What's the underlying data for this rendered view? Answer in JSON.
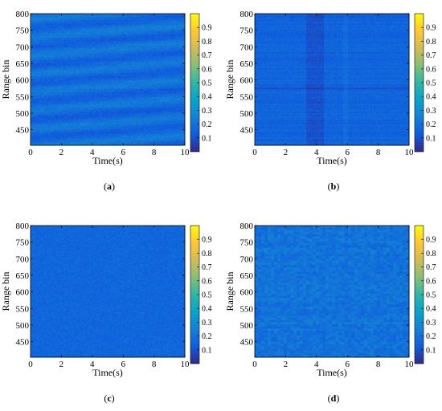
{
  "colors": {
    "colormap_parula": [
      "#352a87",
      "#0f5cdd",
      "#1481d6",
      "#06a4ca",
      "#2eb7a4",
      "#87bf77",
      "#d1bb59",
      "#fec832",
      "#f9fb0e"
    ],
    "axis": "#000000",
    "background": "#ffffff"
  },
  "chart_data": [
    {
      "type": "heatmap",
      "caption_letter": "a",
      "caption_open": "(",
      "caption_close": ")",
      "xlabel": "Time(s)",
      "ylabel": "Range bin",
      "x_ticks": [
        "0",
        "2",
        "4",
        "6",
        "8",
        "10"
      ],
      "y_ticks": [
        "450",
        "500",
        "550",
        "600",
        "650",
        "700",
        "750",
        "800"
      ],
      "xlim": [
        0,
        10
      ],
      "ylim": [
        403,
        800
      ],
      "colorbar_ticks": [
        "0.1",
        "0.2",
        "0.3",
        "0.4",
        "0.5",
        "0.6",
        "0.7",
        "0.8",
        "0.9"
      ],
      "clim": [
        0,
        1
      ],
      "pattern": "diagonal stripes",
      "mean_value": 0.18
    },
    {
      "type": "heatmap",
      "caption_letter": "b",
      "caption_open": "(",
      "caption_close": ")",
      "xlabel": "Time(s)",
      "ylabel": "Range bin",
      "x_ticks": [
        "0",
        "2",
        "4",
        "6",
        "8",
        "10"
      ],
      "y_ticks": [
        "450",
        "500",
        "550",
        "600",
        "650",
        "700",
        "750",
        "800"
      ],
      "xlim": [
        0,
        10
      ],
      "ylim": [
        403,
        800
      ],
      "colorbar_ticks": [
        "0.1",
        "0.2",
        "0.3",
        "0.4",
        "0.5",
        "0.6",
        "0.7",
        "0.8",
        "0.9"
      ],
      "clim": [
        0,
        1
      ],
      "pattern": "horizontal stripes with dark vertical band near 3.5-4.3 s",
      "mean_value": 0.15
    },
    {
      "type": "heatmap",
      "caption_letter": "c",
      "caption_open": "(",
      "caption_close": ")",
      "xlabel": "Time(s)",
      "ylabel": "Range bin",
      "x_ticks": [
        "0",
        "2",
        "4",
        "6",
        "8",
        "10"
      ],
      "y_ticks": [
        "450",
        "500",
        "550",
        "600",
        "650",
        "700",
        "750",
        "800"
      ],
      "xlim": [
        0,
        10
      ],
      "ylim": [
        403,
        800
      ],
      "colorbar_ticks": [
        "0.1",
        "0.2",
        "0.3",
        "0.4",
        "0.5",
        "0.6",
        "0.7",
        "0.8",
        "0.9"
      ],
      "clim": [
        0,
        1
      ],
      "pattern": "uniform fine noise",
      "mean_value": 0.16
    },
    {
      "type": "heatmap",
      "caption_letter": "d",
      "caption_open": "(",
      "caption_close": ")",
      "xlabel": "Time(s)",
      "ylabel": "Range bin",
      "x_ticks": [
        "0",
        "2",
        "4",
        "6",
        "8",
        "10"
      ],
      "y_ticks": [
        "450",
        "500",
        "550",
        "600",
        "650",
        "700",
        "750",
        "800"
      ],
      "xlim": [
        0,
        10
      ],
      "ylim": [
        403,
        800
      ],
      "colorbar_ticks": [
        "0.1",
        "0.2",
        "0.3",
        "0.4",
        "0.5",
        "0.6",
        "0.7",
        "0.8",
        "0.9"
      ],
      "clim": [
        0,
        1
      ],
      "pattern": "blocky noise",
      "mean_value": 0.2
    }
  ]
}
